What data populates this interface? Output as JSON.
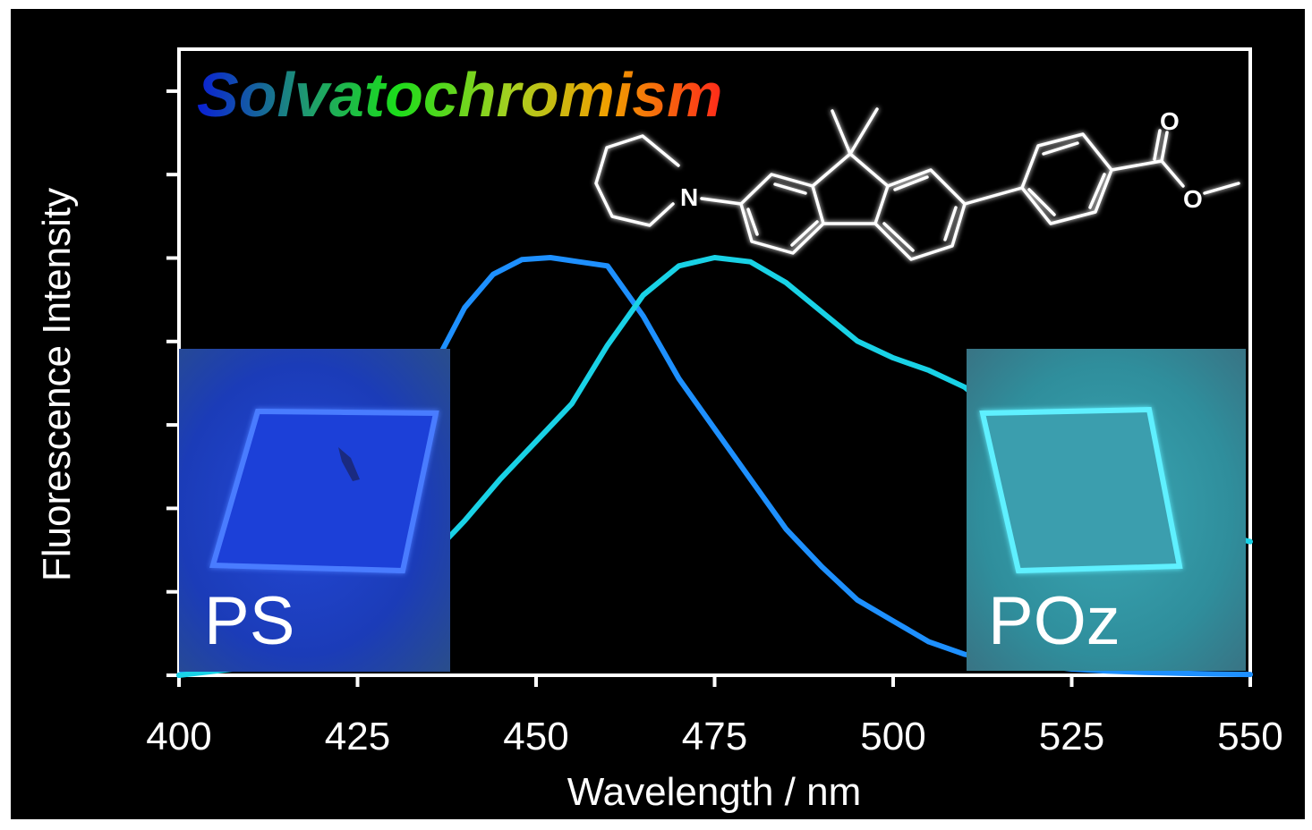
{
  "chart_data": {
    "type": "line",
    "title": "Solvatochromism",
    "xlabel": "Wavelength / nm",
    "ylabel": "Fluorescence Intensity",
    "xlim": [
      400,
      550
    ],
    "ylim": [
      0,
      1.0
    ],
    "x_ticks": [
      "400",
      "425",
      "450",
      "475",
      "500",
      "525",
      "550"
    ],
    "y_tick_labels": "none",
    "grid": false,
    "series": [
      {
        "name": "PS",
        "color": "#1e90ff",
        "x": [
          400,
          420,
          428,
          432,
          436,
          440,
          444,
          448,
          452,
          456,
          460,
          465,
          470,
          475,
          480,
          485,
          490,
          495,
          500,
          505,
          510,
          515,
          520,
          525,
          530,
          535,
          540,
          545,
          550
        ],
        "y": [
          0.0,
          0.16,
          0.33,
          0.52,
          0.75,
          0.88,
          0.96,
          0.995,
          1.0,
          0.99,
          0.98,
          0.86,
          0.71,
          0.59,
          0.47,
          0.35,
          0.26,
          0.18,
          0.13,
          0.08,
          0.05,
          0.035,
          0.025,
          0.015,
          0.01,
          0.007,
          0.005,
          0.003,
          0.002
        ]
      },
      {
        "name": "POz",
        "color": "#19d2e6",
        "x": [
          400,
          410,
          420,
          425,
          430,
          435,
          440,
          445,
          450,
          455,
          460,
          465,
          470,
          475,
          480,
          485,
          490,
          495,
          500,
          505,
          510,
          515,
          520,
          525,
          530,
          535,
          540,
          545,
          550
        ],
        "y": [
          0.0,
          0.02,
          0.07,
          0.12,
          0.19,
          0.28,
          0.37,
          0.47,
          0.56,
          0.65,
          0.79,
          0.91,
          0.98,
          1.0,
          0.99,
          0.94,
          0.87,
          0.8,
          0.76,
          0.73,
          0.69,
          0.62,
          0.55,
          0.5,
          0.45,
          0.41,
          0.37,
          0.34,
          0.32
        ]
      }
    ],
    "annotations": [
      "PS",
      "POz"
    ]
  },
  "colors": {
    "background": "#000000",
    "axis": "#ffffff",
    "title_gradient": [
      "#0a1fd6",
      "#22b14c",
      "#1bd71b",
      "#9acd32",
      "#f0b400",
      "#ff3b1f"
    ]
  },
  "structure_labels": {
    "n_atom": "N",
    "o_carbonyl": "O",
    "o_ester": "O"
  }
}
